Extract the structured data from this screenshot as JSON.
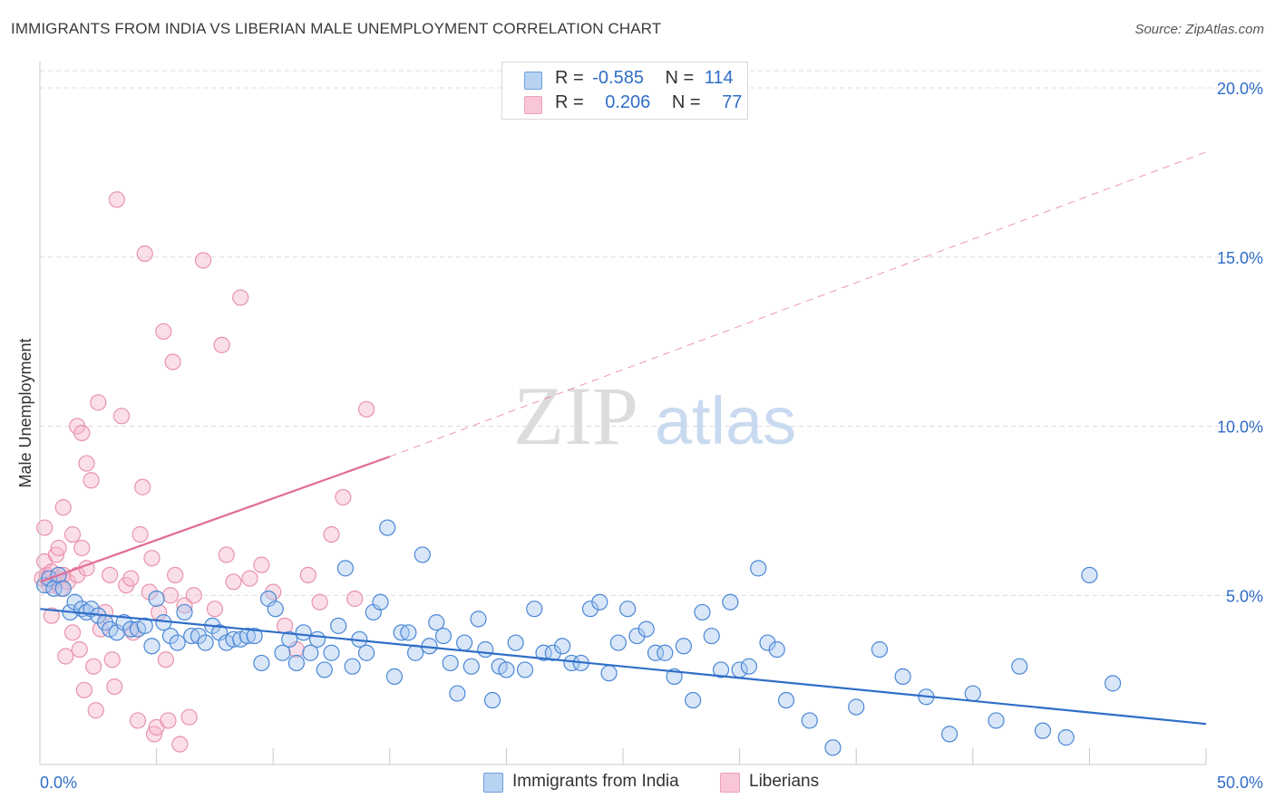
{
  "title": "IMMIGRANTS FROM INDIA VS LIBERIAN MALE UNEMPLOYMENT CORRELATION CHART",
  "source": "Source: ZipAtlas.com",
  "watermark": {
    "zip": "ZIP",
    "atlas": "atlas"
  },
  "legend": {
    "india": {
      "r_label": "R =",
      "r_value": "-0.585",
      "n_label": "N =",
      "n_value": "114"
    },
    "liberians": {
      "r_label": "R =",
      "r_value": "0.206",
      "n_label": "N =",
      "n_value": "77"
    }
  },
  "bottom_legend": {
    "india": "Immigrants from India",
    "liberians": "Liberians"
  },
  "colors": {
    "india_fill": "#a9c8f0",
    "india_stroke": "#4a87d6",
    "india_line": "#2f6ec7",
    "liberians_fill": "#f7b8cb",
    "liberians_stroke": "#e892ae",
    "liberians_line": "#e26b95",
    "grid": "#dcdcdc",
    "axis_text": "#2f6ec7"
  },
  "chart_data": {
    "type": "scatter",
    "title": "IMMIGRANTS FROM INDIA VS LIBERIAN MALE UNEMPLOYMENT CORRELATION CHART",
    "xlabel": "",
    "ylabel": "Male Unemployment",
    "xlim": [
      0,
      50
    ],
    "ylim": [
      0,
      20
    ],
    "x_tick_labels": [
      "0.0%",
      "50.0%"
    ],
    "y_ticks": [
      5,
      10,
      15,
      20
    ],
    "y_tick_labels": [
      "5.0%",
      "10.0%",
      "15.0%",
      "20.0%"
    ],
    "grid": true,
    "series": [
      {
        "name": "Immigrants from India",
        "r": -0.585,
        "n": 114,
        "trend": {
          "x0": 0,
          "y0": 4.6,
          "x1": 50,
          "y1": 1.2
        },
        "points": [
          [
            0.2,
            5.3
          ],
          [
            0.4,
            5.5
          ],
          [
            0.6,
            5.2
          ],
          [
            0.8,
            5.6
          ],
          [
            1.0,
            5.2
          ],
          [
            1.3,
            4.5
          ],
          [
            1.5,
            4.8
          ],
          [
            1.8,
            4.6
          ],
          [
            2.0,
            4.5
          ],
          [
            2.2,
            4.6
          ],
          [
            2.5,
            4.4
          ],
          [
            2.8,
            4.2
          ],
          [
            3.0,
            4.0
          ],
          [
            3.3,
            3.9
          ],
          [
            3.6,
            4.2
          ],
          [
            3.9,
            4.0
          ],
          [
            4.2,
            4.0
          ],
          [
            4.5,
            4.1
          ],
          [
            4.8,
            3.5
          ],
          [
            5.0,
            4.9
          ],
          [
            5.3,
            4.2
          ],
          [
            5.6,
            3.8
          ],
          [
            5.9,
            3.6
          ],
          [
            6.2,
            4.5
          ],
          [
            6.5,
            3.8
          ],
          [
            6.8,
            3.8
          ],
          [
            7.1,
            3.6
          ],
          [
            7.4,
            4.1
          ],
          [
            7.7,
            3.9
          ],
          [
            8.0,
            3.6
          ],
          [
            8.3,
            3.7
          ],
          [
            8.6,
            3.7
          ],
          [
            8.9,
            3.8
          ],
          [
            9.2,
            3.8
          ],
          [
            9.5,
            3.0
          ],
          [
            9.8,
            4.9
          ],
          [
            10.1,
            4.6
          ],
          [
            10.4,
            3.3
          ],
          [
            10.7,
            3.7
          ],
          [
            11.0,
            3.0
          ],
          [
            11.3,
            3.9
          ],
          [
            11.6,
            3.3
          ],
          [
            11.9,
            3.7
          ],
          [
            12.2,
            2.8
          ],
          [
            12.5,
            3.3
          ],
          [
            12.8,
            4.1
          ],
          [
            13.1,
            5.8
          ],
          [
            13.4,
            2.9
          ],
          [
            13.7,
            3.7
          ],
          [
            14.0,
            3.3
          ],
          [
            14.3,
            4.5
          ],
          [
            14.6,
            4.8
          ],
          [
            14.9,
            7.0
          ],
          [
            15.2,
            2.6
          ],
          [
            15.5,
            3.9
          ],
          [
            15.8,
            3.9
          ],
          [
            16.1,
            3.3
          ],
          [
            16.4,
            6.2
          ],
          [
            16.7,
            3.5
          ],
          [
            17.0,
            4.2
          ],
          [
            17.3,
            3.8
          ],
          [
            17.6,
            3.0
          ],
          [
            17.9,
            2.1
          ],
          [
            18.2,
            3.6
          ],
          [
            18.5,
            2.9
          ],
          [
            18.8,
            4.3
          ],
          [
            19.1,
            3.4
          ],
          [
            19.4,
            1.9
          ],
          [
            19.7,
            2.9
          ],
          [
            20.0,
            2.8
          ],
          [
            20.4,
            3.6
          ],
          [
            20.8,
            2.8
          ],
          [
            21.2,
            4.6
          ],
          [
            21.6,
            3.3
          ],
          [
            22.0,
            3.3
          ],
          [
            22.4,
            3.5
          ],
          [
            22.8,
            3.0
          ],
          [
            23.2,
            3.0
          ],
          [
            23.6,
            4.6
          ],
          [
            24.0,
            4.8
          ],
          [
            24.4,
            2.7
          ],
          [
            24.8,
            3.6
          ],
          [
            25.2,
            4.6
          ],
          [
            25.6,
            3.8
          ],
          [
            26.0,
            4.0
          ],
          [
            26.4,
            3.3
          ],
          [
            26.8,
            3.3
          ],
          [
            27.2,
            2.6
          ],
          [
            27.6,
            3.5
          ],
          [
            28.0,
            1.9
          ],
          [
            28.4,
            4.5
          ],
          [
            28.8,
            3.8
          ],
          [
            29.2,
            2.8
          ],
          [
            29.6,
            4.8
          ],
          [
            30.0,
            2.8
          ],
          [
            30.4,
            2.9
          ],
          [
            30.8,
            5.8
          ],
          [
            31.2,
            3.6
          ],
          [
            31.6,
            3.4
          ],
          [
            32.0,
            1.9
          ],
          [
            33.0,
            1.3
          ],
          [
            34.0,
            0.5
          ],
          [
            35.0,
            1.7
          ],
          [
            36.0,
            3.4
          ],
          [
            37.0,
            2.6
          ],
          [
            38.0,
            2.0
          ],
          [
            39.0,
            0.9
          ],
          [
            40.0,
            2.1
          ],
          [
            41.0,
            1.3
          ],
          [
            42.0,
            2.9
          ],
          [
            43.0,
            1.0
          ],
          [
            44.0,
            0.8
          ],
          [
            45.0,
            5.6
          ],
          [
            46.0,
            2.4
          ]
        ]
      },
      {
        "name": "Liberians",
        "r": 0.206,
        "n": 77,
        "trend": {
          "x0": 0,
          "y0": 5.4,
          "x1": 15,
          "y1": 9.1,
          "dashed_to": {
            "x": 50,
            "y": 18.1
          }
        },
        "points": [
          [
            0.1,
            5.5
          ],
          [
            0.2,
            6.0
          ],
          [
            0.3,
            5.6
          ],
          [
            0.4,
            5.3
          ],
          [
            0.5,
            5.7
          ],
          [
            0.6,
            5.4
          ],
          [
            0.7,
            6.2
          ],
          [
            0.8,
            5.5
          ],
          [
            0.9,
            5.2
          ],
          [
            1.0,
            5.6
          ],
          [
            0.2,
            7.0
          ],
          [
            0.5,
            4.4
          ],
          [
            0.8,
            6.4
          ],
          [
            1.0,
            7.6
          ],
          [
            1.2,
            5.4
          ],
          [
            1.4,
            6.8
          ],
          [
            1.6,
            5.6
          ],
          [
            1.8,
            6.4
          ],
          [
            2.0,
            5.8
          ],
          [
            0.3,
            5.5
          ],
          [
            1.1,
            3.2
          ],
          [
            1.4,
            3.9
          ],
          [
            1.6,
            10.0
          ],
          [
            1.7,
            3.4
          ],
          [
            1.8,
            9.8
          ],
          [
            1.9,
            2.2
          ],
          [
            2.0,
            8.9
          ],
          [
            2.2,
            8.4
          ],
          [
            2.3,
            2.9
          ],
          [
            2.4,
            1.6
          ],
          [
            2.5,
            10.7
          ],
          [
            2.6,
            4.0
          ],
          [
            2.8,
            4.5
          ],
          [
            3.0,
            5.6
          ],
          [
            3.1,
            3.1
          ],
          [
            3.2,
            2.3
          ],
          [
            3.3,
            16.7
          ],
          [
            3.5,
            10.3
          ],
          [
            3.7,
            5.3
          ],
          [
            3.9,
            5.5
          ],
          [
            4.0,
            3.9
          ],
          [
            4.2,
            1.3
          ],
          [
            4.3,
            6.8
          ],
          [
            4.4,
            8.2
          ],
          [
            4.5,
            15.1
          ],
          [
            4.7,
            5.1
          ],
          [
            4.8,
            6.1
          ],
          [
            4.9,
            0.9
          ],
          [
            5.0,
            1.1
          ],
          [
            5.1,
            4.5
          ],
          [
            5.3,
            12.8
          ],
          [
            5.4,
            3.1
          ],
          [
            5.5,
            1.3
          ],
          [
            5.6,
            5.0
          ],
          [
            5.7,
            11.9
          ],
          [
            5.8,
            5.6
          ],
          [
            6.0,
            0.6
          ],
          [
            6.2,
            4.7
          ],
          [
            6.4,
            1.4
          ],
          [
            6.6,
            5.0
          ],
          [
            7.0,
            14.9
          ],
          [
            7.5,
            4.6
          ],
          [
            7.8,
            12.4
          ],
          [
            8.0,
            6.2
          ],
          [
            8.3,
            5.4
          ],
          [
            8.6,
            13.8
          ],
          [
            9.0,
            5.5
          ],
          [
            9.5,
            5.9
          ],
          [
            10.0,
            5.1
          ],
          [
            10.5,
            4.1
          ],
          [
            11.0,
            3.4
          ],
          [
            11.5,
            5.6
          ],
          [
            12.0,
            4.8
          ],
          [
            12.5,
            6.8
          ],
          [
            13.0,
            7.9
          ],
          [
            13.5,
            4.9
          ],
          [
            14.0,
            10.5
          ]
        ]
      }
    ]
  }
}
